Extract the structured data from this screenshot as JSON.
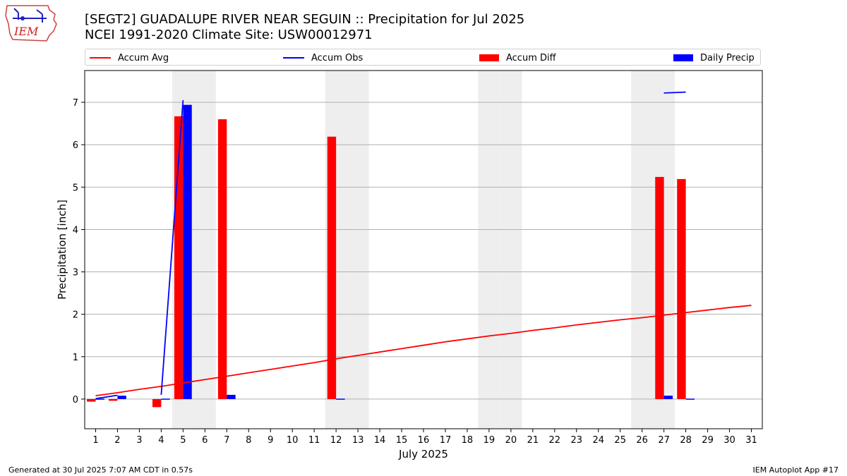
{
  "header": {
    "title_line1": "[SEGT2] GUADALUPE RIVER NEAR SEGUIN :: Precipitation for Jul 2025",
    "title_line2": "NCEI 1991-2020 Climate Site: USW00012971",
    "logo_text": "IEM"
  },
  "legend": {
    "accum_avg": "Accum Avg",
    "accum_obs": "Accum Obs",
    "accum_diff": "Accum Diff",
    "daily_precip": "Daily Precip"
  },
  "colors": {
    "avg": "#ff0000",
    "obs": "#0000ff",
    "diff": "#ff0000",
    "daily": "#0000ff",
    "weekend": "#eeeeee",
    "grid": "#b0b0b0"
  },
  "footer": {
    "generated": "Generated at 30 Jul 2025 7:07 AM CDT in 0.57s",
    "app": "IEM Autoplot App #17"
  },
  "chart_data": {
    "type": "bar",
    "xlabel": "July 2025",
    "ylabel": "Precipitation [inch]",
    "xlim": [
      0.5,
      31.5
    ],
    "ylim": [
      -0.7,
      7.75
    ],
    "yticks": [
      0,
      1,
      2,
      3,
      4,
      5,
      6,
      7
    ],
    "days": [
      1,
      2,
      3,
      4,
      5,
      6,
      7,
      8,
      9,
      10,
      11,
      12,
      13,
      14,
      15,
      16,
      17,
      18,
      19,
      20,
      21,
      22,
      23,
      24,
      25,
      26,
      27,
      28,
      29,
      30,
      31
    ],
    "weekend_days": [
      5,
      6,
      12,
      13,
      19,
      20,
      26,
      27
    ],
    "series": [
      {
        "name": "Accum Avg",
        "kind": "line",
        "x": [
          1,
          2,
          3,
          4,
          5,
          6,
          7,
          8,
          9,
          10,
          11,
          12,
          13,
          14,
          15,
          16,
          17,
          18,
          19,
          20,
          21,
          22,
          23,
          24,
          25,
          26,
          27,
          28,
          29,
          30,
          31
        ],
        "values": [
          0.08,
          0.15,
          0.23,
          0.3,
          0.38,
          0.46,
          0.54,
          0.62,
          0.7,
          0.78,
          0.86,
          0.95,
          1.03,
          1.11,
          1.19,
          1.27,
          1.35,
          1.42,
          1.49,
          1.55,
          1.62,
          1.68,
          1.75,
          1.81,
          1.87,
          1.92,
          1.98,
          2.04,
          2.1,
          2.16,
          2.21
        ]
      },
      {
        "name": "Accum Obs",
        "kind": "line",
        "segments": [
          {
            "x": [
              1,
              2
            ],
            "values": [
              0.01,
              0.09
            ]
          },
          {
            "x": [
              4,
              5
            ],
            "values": [
              0.1,
              7.05
            ]
          },
          {
            "x": [
              27,
              28
            ],
            "values": [
              7.22,
              7.24
            ]
          }
        ]
      },
      {
        "name": "Accum Diff",
        "kind": "bar",
        "x": [
          1,
          2,
          4,
          5,
          7,
          12,
          27,
          28
        ],
        "values": [
          -0.06,
          -0.04,
          -0.19,
          6.67,
          6.6,
          6.19,
          5.24,
          5.19
        ]
      },
      {
        "name": "Daily Precip",
        "kind": "bar",
        "x": [
          1,
          2,
          4,
          5,
          7,
          12,
          27,
          28
        ],
        "values": [
          0.01,
          0.08,
          0.01,
          6.94,
          0.1,
          0.01,
          0.08,
          0.01
        ]
      }
    ]
  }
}
